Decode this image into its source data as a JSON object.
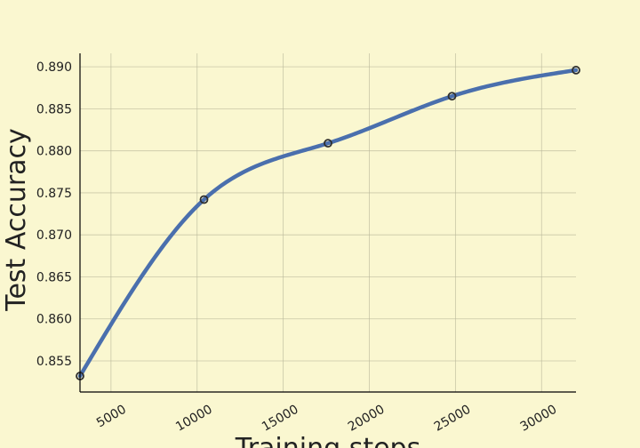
{
  "chart_data": {
    "type": "line",
    "xlabel": "Training steps",
    "ylabel": "Test Accuracy",
    "xlim": [
      3200,
      32000
    ],
    "ylim": [
      0.8513,
      0.8916
    ],
    "xticks": [
      5000,
      10000,
      15000,
      20000,
      25000,
      30000
    ],
    "yticks": [
      0.855,
      0.86,
      0.865,
      0.87,
      0.875,
      0.88,
      0.885,
      0.89
    ],
    "grid": true,
    "series": [
      {
        "x": [
          3200,
          10400,
          17600,
          24800,
          32000
        ],
        "y": [
          0.8532,
          0.8742,
          0.8809,
          0.8865,
          0.8896
        ],
        "color": "#4a6fad",
        "smooth": true,
        "markers": "open-circle"
      }
    ]
  }
}
